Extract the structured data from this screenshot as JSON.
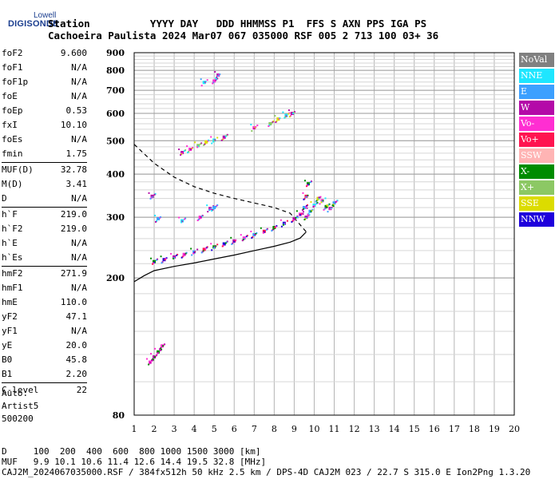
{
  "logo": {
    "top": "Lowell",
    "main": "DIGISONDE"
  },
  "header": {
    "row1": "Station          YYYY DAY   DDD HHMMSS P1  FFS S AXN PPS IGA PS",
    "row2": "Cachoeira Paulista 2024 Mar07 067 035000 RSF 005 2 713 100 03+ 36"
  },
  "params": [
    {
      "label": "foF2",
      "value": "9.600"
    },
    {
      "label": "foF1",
      "value": "N/A"
    },
    {
      "label": "foF1p",
      "value": "N/A"
    },
    {
      "label": "foE",
      "value": "N/A"
    },
    {
      "label": "foEp",
      "value": "0.53"
    },
    {
      "label": "fxI",
      "value": "10.10"
    },
    {
      "label": "foEs",
      "value": "N/A"
    },
    {
      "label": "fmin",
      "value": "1.75"
    },
    {
      "label": "MUF(D)",
      "value": "32.78"
    },
    {
      "label": "M(D)",
      "value": "3.41"
    },
    {
      "label": "D",
      "value": "N/A"
    },
    {
      "label": "h`F",
      "value": "219.0"
    },
    {
      "label": "h`F2",
      "value": "219.0"
    },
    {
      "label": "h`E",
      "value": "N/A"
    },
    {
      "label": "h`Es",
      "value": "N/A"
    },
    {
      "label": "hmF2",
      "value": "271.9"
    },
    {
      "label": "hmF1",
      "value": "N/A"
    },
    {
      "label": "hmE",
      "value": "110.0"
    },
    {
      "label": "yF2",
      "value": "47.1"
    },
    {
      "label": "yF1",
      "value": "N/A"
    },
    {
      "label": "yE",
      "value": "20.0"
    },
    {
      "label": "B0",
      "value": "45.8"
    },
    {
      "label": "B1",
      "value": "2.20"
    },
    {
      "label": "C-level",
      "value": "22"
    }
  ],
  "auto": {
    "line1": "Auto:",
    "line2": "Artist5",
    "line3": "500200"
  },
  "legend": [
    {
      "label": "NoVal",
      "color": "#808080"
    },
    {
      "label": "NNE",
      "color": "#1ee6ff"
    },
    {
      "label": "E",
      "color": "#3ca0ff"
    },
    {
      "label": "W",
      "color": "#b40aa8"
    },
    {
      "label": "Vo-",
      "color": "#ff2ed2"
    },
    {
      "label": "Vo+",
      "color": "#ff1450"
    },
    {
      "label": "SSW",
      "color": "#ffb4b4"
    },
    {
      "label": "X-",
      "color": "#008c00"
    },
    {
      "label": "X+",
      "color": "#8cc864"
    },
    {
      "label": "SSE",
      "color": "#dcdc00"
    },
    {
      "label": "NNW",
      "color": "#1e00dc"
    }
  ],
  "footer": {
    "line1": "D     100  200  400  600  800 1000 1500 3000 [km]",
    "line2": "MUF   9.9 10.1 10.6 11.4 12.6 14.4 19.5 32.8 [MHz]",
    "line3": "CAJ2M_2024067035000.RSF / 384fx512h 50 kHz 2.5 km / DPS-4D CAJ2M 023 / 22.7 S 315.0 E Ion2Png 1.3.20"
  },
  "chart_data": {
    "type": "scatter",
    "xlim": [
      1,
      20
    ],
    "ylim": [
      80,
      900
    ],
    "x_ticks": [
      "1",
      "2",
      "3",
      "4",
      "5",
      "6",
      "7",
      "8",
      "9",
      "10",
      "11",
      "12",
      "13",
      "14",
      "15",
      "16",
      "17",
      "18",
      "19",
      "20"
    ],
    "y_ticks": [
      "80",
      "200",
      "300",
      "400",
      "500",
      "600",
      "700",
      "800",
      "900"
    ],
    "y_scale": "log",
    "grid": true,
    "series": [
      {
        "color_key": "o_trace",
        "points": [
          [
            2.0,
            223
          ],
          [
            2.5,
            226
          ],
          [
            3.0,
            230
          ],
          [
            3.5,
            234
          ],
          [
            4.0,
            238
          ],
          [
            4.5,
            242
          ],
          [
            5.0,
            246
          ],
          [
            5.5,
            251
          ],
          [
            6.0,
            256
          ],
          [
            6.5,
            261
          ],
          [
            7.0,
            267
          ],
          [
            7.5,
            273
          ],
          [
            8.0,
            280
          ],
          [
            8.5,
            288
          ],
          [
            9.0,
            297
          ],
          [
            9.3,
            306
          ],
          [
            9.5,
            320
          ],
          [
            9.6,
            345
          ],
          [
            9.7,
            375
          ]
        ]
      },
      {
        "color_key": "x_cloud",
        "points": [
          [
            9.6,
            300
          ],
          [
            9.8,
            312
          ],
          [
            10.0,
            325
          ],
          [
            10.2,
            340
          ],
          [
            10.4,
            335
          ],
          [
            10.6,
            322
          ],
          [
            10.8,
            318
          ],
          [
            11.0,
            330
          ]
        ]
      },
      {
        "color_key": "second_hop",
        "points": [
          [
            3.4,
            462
          ],
          [
            3.8,
            472
          ],
          [
            4.2,
            484
          ],
          [
            4.6,
            496
          ],
          [
            5.0,
            502
          ],
          [
            5.5,
            512
          ],
          [
            7.0,
            545
          ],
          [
            7.8,
            560
          ],
          [
            8.2,
            578
          ],
          [
            8.6,
            592
          ],
          [
            8.9,
            600
          ]
        ]
      },
      {
        "color_key": "es_low",
        "points": [
          [
            1.8,
            114
          ],
          [
            2.0,
            118
          ],
          [
            2.2,
            122
          ],
          [
            2.4,
            127
          ]
        ]
      },
      {
        "color_key": "sporadic",
        "points": [
          [
            1.9,
            345
          ],
          [
            2.2,
            297
          ],
          [
            3.4,
            293
          ],
          [
            4.3,
            300
          ],
          [
            4.8,
            318
          ],
          [
            5.0,
            320
          ],
          [
            4.5,
            738
          ],
          [
            5.0,
            745
          ],
          [
            5.2,
            775
          ]
        ]
      }
    ],
    "profile_solid": [
      [
        1,
        195
      ],
      [
        1.5,
        203
      ],
      [
        2,
        210
      ],
      [
        3,
        216
      ],
      [
        4,
        221
      ],
      [
        5,
        227
      ],
      [
        6,
        233
      ],
      [
        7,
        240
      ],
      [
        8,
        247
      ],
      [
        8.8,
        254
      ],
      [
        9.3,
        261
      ],
      [
        9.6,
        272
      ]
    ],
    "profile_dashed": [
      [
        1,
        488
      ],
      [
        2,
        430
      ],
      [
        3,
        392
      ],
      [
        4,
        368
      ],
      [
        5,
        352
      ],
      [
        6,
        340
      ],
      [
        7,
        330
      ],
      [
        8,
        320
      ],
      [
        8.8,
        308
      ],
      [
        9.6,
        272
      ]
    ]
  }
}
